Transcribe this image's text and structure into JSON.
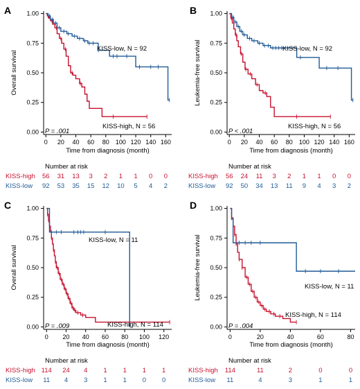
{
  "colors": {
    "high": "#c8102e",
    "low": "#1f5a96",
    "axis": "#000000"
  },
  "panels": [
    {
      "id": "A",
      "letter": "A",
      "ylabel": "Overall survival",
      "xlabel": "Time from diagnosis (month)",
      "pvalue": "P = .001",
      "xticks": [
        0,
        20,
        40,
        60,
        80,
        100,
        120,
        140,
        160
      ],
      "xlim": [
        -3,
        168
      ],
      "yticks": [
        "0.00",
        "0.25",
        "0.50",
        "0.75",
        "1.00"
      ],
      "legend": {
        "high": "KISS-high, N = 56",
        "low": "KISS-low, N = 92"
      },
      "risk_title": "Number at risk",
      "risk_times": [
        0,
        20,
        40,
        60,
        80,
        100,
        120,
        140,
        160
      ],
      "risk": {
        "high": {
          "label": "KISS-high",
          "values": [
            "56",
            "31",
            "13",
            "3",
            "2",
            "1",
            "1",
            "0",
            "0"
          ]
        },
        "low": {
          "label": "KISS-low",
          "values": [
            "92",
            "53",
            "35",
            "15",
            "12",
            "10",
            "5",
            "4",
            "2"
          ]
        }
      },
      "chart_data": {
        "type": "line",
        "ylim": [
          0,
          1
        ],
        "series": [
          {
            "name": "KISS-high",
            "x": [
              0,
              2,
              4,
              6,
              9,
              12,
              15,
              18,
              21,
              24,
              27,
              30,
              33,
              36,
              40,
              45,
              48,
              52,
              55,
              58,
              65,
              75,
              90,
              135
            ],
            "y": [
              1.0,
              0.98,
              0.96,
              0.94,
              0.91,
              0.88,
              0.83,
              0.79,
              0.75,
              0.7,
              0.64,
              0.56,
              0.5,
              0.48,
              0.45,
              0.41,
              0.38,
              0.32,
              0.26,
              0.2,
              0.2,
              0.13,
              0.13,
              0.13
            ],
            "censor_x": [
              3,
              8,
              14,
              20,
              26,
              35,
              46,
              90,
              135
            ]
          },
          {
            "name": "KISS-low",
            "x": [
              0,
              3,
              6,
              10,
              15,
              20,
              28,
              35,
              42,
              50,
              56,
              70,
              85,
              110,
              120,
              160,
              163,
              165
            ],
            "y": [
              1.0,
              0.98,
              0.95,
              0.92,
              0.88,
              0.85,
              0.83,
              0.81,
              0.79,
              0.77,
              0.75,
              0.69,
              0.64,
              0.64,
              0.55,
              0.55,
              0.27,
              0.27
            ],
            "censor_x": [
              5,
              9,
              13,
              18,
              24,
              30,
              38,
              45,
              52,
              58,
              63,
              70,
              90,
              95,
              108,
              125,
              140,
              150,
              165
            ]
          }
        ]
      }
    },
    {
      "id": "B",
      "letter": "B",
      "ylabel": "Leukemia-free survival",
      "xlabel": "Time from diagnosis (month)",
      "pvalue": "P < .001",
      "xticks": [
        0,
        20,
        40,
        60,
        80,
        100,
        120,
        140,
        160
      ],
      "xlim": [
        -3,
        168
      ],
      "yticks": [
        "0.00",
        "0.25",
        "0.50",
        "0.75",
        "1.00"
      ],
      "legend": {
        "high": "KISS-high, N = 56",
        "low": "KISS-low, N = 92"
      },
      "risk_title": "Number at risk",
      "risk_times": [
        0,
        20,
        40,
        60,
        80,
        100,
        120,
        140,
        160
      ],
      "risk": {
        "high": {
          "label": "KISS-high",
          "values": [
            "56",
            "24",
            "11",
            "3",
            "2",
            "1",
            "1",
            "0",
            "0"
          ]
        },
        "low": {
          "label": "KISS-low",
          "values": [
            "92",
            "50",
            "34",
            "13",
            "11",
            "9",
            "4",
            "3",
            "2"
          ]
        }
      },
      "chart_data": {
        "type": "line",
        "ylim": [
          0,
          1
        ],
        "series": [
          {
            "name": "KISS-high",
            "x": [
              0,
              2,
              4,
              6,
              8,
              10,
              12,
              15,
              18,
              21,
              25,
              30,
              35,
              40,
              45,
              50,
              55,
              60,
              90,
              135
            ],
            "y": [
              1.0,
              0.96,
              0.92,
              0.87,
              0.82,
              0.77,
              0.72,
              0.66,
              0.59,
              0.53,
              0.49,
              0.45,
              0.4,
              0.35,
              0.33,
              0.3,
              0.21,
              0.13,
              0.13,
              0.13
            ],
            "censor_x": [
              3,
              9,
              16,
              22,
              28,
              37,
              48,
              90,
              135
            ]
          },
          {
            "name": "KISS-low",
            "x": [
              0,
              3,
              6,
              10,
              14,
              18,
              24,
              30,
              38,
              45,
              55,
              85,
              90,
              115,
              120,
              160,
              163,
              165
            ],
            "y": [
              1.0,
              0.97,
              0.93,
              0.89,
              0.85,
              0.82,
              0.79,
              0.77,
              0.75,
              0.73,
              0.71,
              0.71,
              0.63,
              0.63,
              0.54,
              0.54,
              0.27,
              0.27
            ],
            "censor_x": [
              5,
              8,
              12,
              16,
              20,
              27,
              33,
              40,
              47,
              52,
              58,
              62,
              66,
              70,
              95,
              130,
              145,
              165
            ]
          }
        ]
      }
    },
    {
      "id": "C",
      "letter": "C",
      "ylabel": "Overall survival",
      "xlabel": "Time from diagnosis (month)",
      "pvalue": "P = .009",
      "xticks": [
        0,
        20,
        40,
        60,
        80,
        100,
        120
      ],
      "xlim": [
        -3,
        128
      ],
      "yticks": [
        "0.00",
        "0.25",
        "0.50",
        "0.75",
        "1.00"
      ],
      "legend": {
        "high": "KISS-high, N = 114",
        "low": "KISS-low, N = 11"
      },
      "risk_title": "Number at risk",
      "risk_times": [
        0,
        20,
        40,
        60,
        80,
        100,
        120
      ],
      "risk": {
        "high": {
          "label": "KISS-high",
          "values": [
            "114",
            "24",
            "4",
            "1",
            "1",
            "1",
            "1"
          ]
        },
        "low": {
          "label": "KISS-low",
          "values": [
            "11",
            "4",
            "3",
            "1",
            "1",
            "0",
            "0"
          ]
        }
      },
      "chart_data": {
        "type": "line",
        "ylim": [
          0,
          1
        ],
        "series": [
          {
            "name": "KISS-high",
            "x": [
              0,
              1,
              2,
              3,
              4,
              5,
              6,
              7,
              8,
              9,
              10,
              12,
              14,
              16,
              18,
              20,
              22,
              24,
              26,
              28,
              30,
              35,
              40,
              50,
              126
            ],
            "y": [
              1.0,
              0.95,
              0.9,
              0.85,
              0.8,
              0.75,
              0.7,
              0.65,
              0.6,
              0.55,
              0.5,
              0.45,
              0.4,
              0.36,
              0.32,
              0.28,
              0.24,
              0.2,
              0.16,
              0.14,
              0.12,
              0.1,
              0.08,
              0.04,
              0.04
            ],
            "censor_x": [
              1,
              2,
              3,
              5,
              7,
              9,
              11,
              13,
              15,
              17,
              19,
              21,
              23,
              25,
              27,
              29,
              32,
              37,
              126
            ]
          },
          {
            "name": "KISS-low",
            "x": [
              0,
              3,
              85,
              85
            ],
            "y": [
              1.0,
              0.8,
              0.8,
              0.0
            ],
            "censor_x": [
              5,
              10,
              15,
              28,
              32,
              35,
              38,
              60
            ]
          }
        ]
      }
    },
    {
      "id": "D",
      "letter": "D",
      "ylabel": "Leukemia-free survival",
      "xlabel": "Time from diagnosis (month)",
      "pvalue": "P = .004",
      "xticks": [
        0,
        20,
        40,
        60,
        80
      ],
      "xlim": [
        -2,
        83
      ],
      "yticks": [
        "0.00",
        "0.25",
        "0.50",
        "0.75",
        "1.00"
      ],
      "legend": {
        "high": "KISS-high, N = 114",
        "low": "KISS-low, N = 11"
      },
      "risk_title": "Number at risk",
      "risk_times": [
        0,
        20,
        40,
        60,
        80
      ],
      "risk": {
        "high": {
          "label": "KISS-high",
          "values": [
            "114",
            "11",
            "2",
            "0",
            "0"
          ]
        },
        "low": {
          "label": "KISS-low",
          "values": [
            "11",
            "4",
            "3",
            "1",
            "1"
          ]
        }
      },
      "chart_data": {
        "type": "line",
        "ylim": [
          0,
          1
        ],
        "series": [
          {
            "name": "KISS-high",
            "x": [
              0,
              1,
              2,
              3,
              4,
              5,
              6,
              8,
              10,
              12,
              14,
              16,
              18,
              20,
              22,
              24,
              27,
              30,
              35,
              40,
              44
            ],
            "y": [
              1.0,
              0.92,
              0.85,
              0.78,
              0.7,
              0.63,
              0.57,
              0.5,
              0.42,
              0.36,
              0.3,
              0.25,
              0.21,
              0.18,
              0.15,
              0.13,
              0.11,
              0.09,
              0.07,
              0.04,
              0.04
            ],
            "censor_x": [
              1,
              2,
              3,
              4,
              6,
              8,
              11,
              13,
              15,
              17,
              19,
              21,
              23,
              26,
              29,
              33,
              44
            ]
          },
          {
            "name": "KISS-low",
            "x": [
              0,
              1,
              2,
              44,
              44,
              83
            ],
            "y": [
              1.0,
              0.91,
              0.71,
              0.71,
              0.47,
              0.47
            ],
            "censor_x": [
              6,
              10,
              14,
              20,
              50,
              60,
              72
            ]
          }
        ]
      }
    }
  ]
}
